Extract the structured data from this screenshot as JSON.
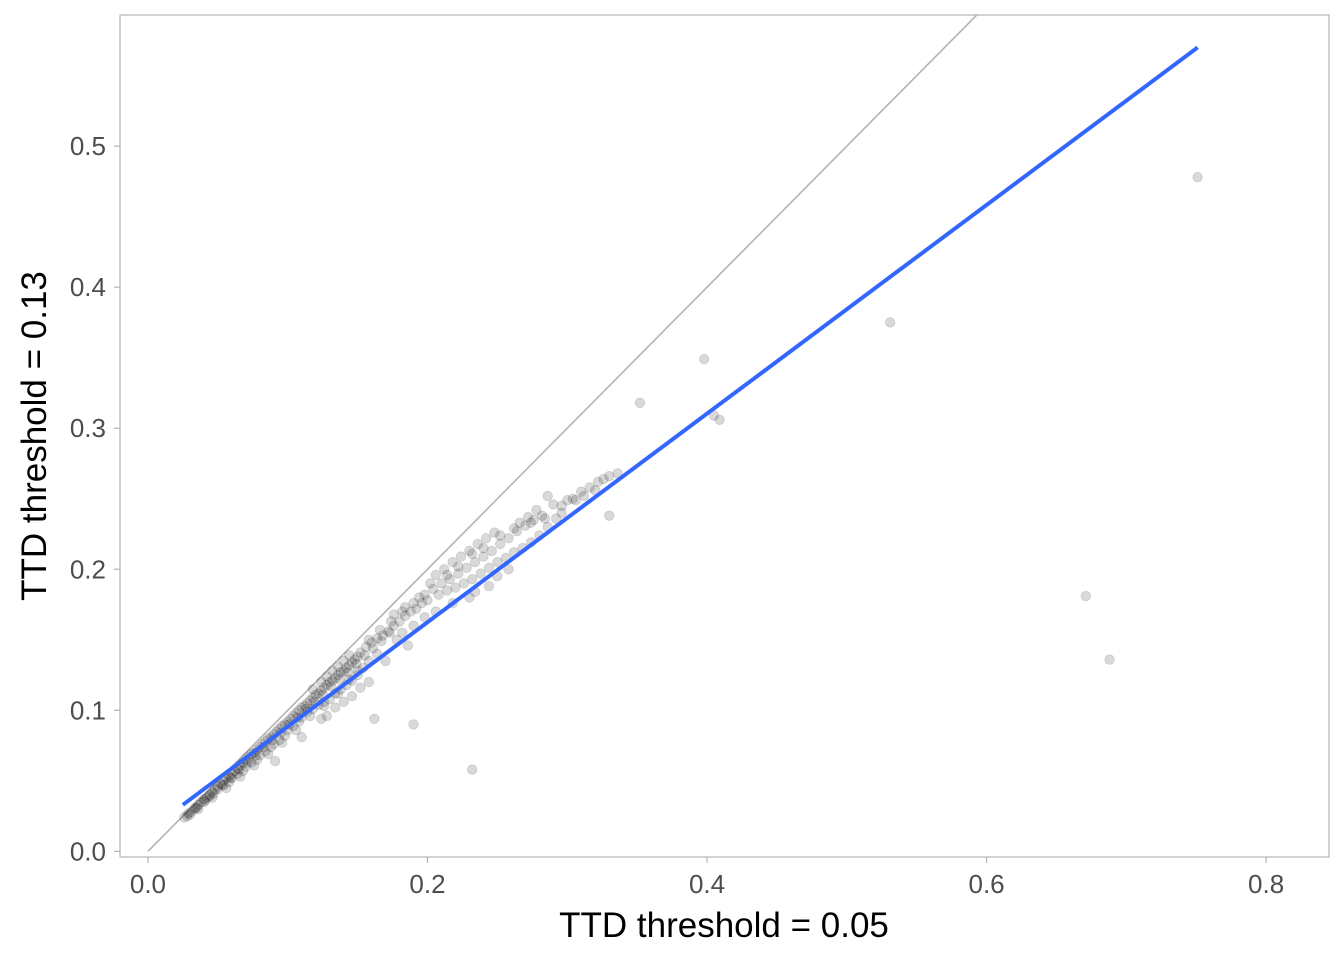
{
  "chart_data": {
    "type": "scatter",
    "title": "",
    "xlabel": "TTD threshold = 0.05",
    "ylabel": "TTD threshold = 0.13",
    "xlim": [
      -0.02,
      0.845
    ],
    "ylim": [
      -0.004,
      0.593
    ],
    "xticks": [
      0.0,
      0.2,
      0.4,
      0.6,
      0.8
    ],
    "xtick_labels": [
      "0.0",
      "0.2",
      "0.4",
      "0.6",
      "0.8"
    ],
    "yticks": [
      0.0,
      0.1,
      0.2,
      0.3,
      0.4,
      0.5
    ],
    "ytick_labels": [
      "0.0",
      "0.1",
      "0.2",
      "0.3",
      "0.4",
      "0.5"
    ],
    "grid": false,
    "legend": "none",
    "identity_line": {
      "slope": 1,
      "intercept": 0,
      "color": "#b3b3b3"
    },
    "fit_line": {
      "x": [
        0.025,
        0.751
      ],
      "y": [
        0.033,
        0.57
      ],
      "color": "#3366ff"
    },
    "point_color": "#000000",
    "point_opacity": 0.15,
    "points": [
      [
        0.026,
        0.024
      ],
      [
        0.028,
        0.025
      ],
      [
        0.029,
        0.027
      ],
      [
        0.031,
        0.028
      ],
      [
        0.033,
        0.03
      ],
      [
        0.034,
        0.031
      ],
      [
        0.036,
        0.033
      ],
      [
        0.038,
        0.035
      ],
      [
        0.04,
        0.037
      ],
      [
        0.042,
        0.038
      ],
      [
        0.044,
        0.04
      ],
      [
        0.046,
        0.042
      ],
      [
        0.048,
        0.044
      ],
      [
        0.05,
        0.046
      ],
      [
        0.052,
        0.048
      ],
      [
        0.054,
        0.05
      ],
      [
        0.056,
        0.052
      ],
      [
        0.058,
        0.053
      ],
      [
        0.06,
        0.055
      ],
      [
        0.062,
        0.057
      ],
      [
        0.064,
        0.059
      ],
      [
        0.066,
        0.061
      ],
      [
        0.068,
        0.063
      ],
      [
        0.07,
        0.065
      ],
      [
        0.072,
        0.067
      ],
      [
        0.074,
        0.069
      ],
      [
        0.076,
        0.07
      ],
      [
        0.078,
        0.072
      ],
      [
        0.08,
        0.074
      ],
      [
        0.082,
        0.076
      ],
      [
        0.084,
        0.078
      ],
      [
        0.086,
        0.08
      ],
      [
        0.088,
        0.081
      ],
      [
        0.09,
        0.083
      ],
      [
        0.092,
        0.085
      ],
      [
        0.094,
        0.087
      ],
      [
        0.096,
        0.089
      ],
      [
        0.098,
        0.09
      ],
      [
        0.1,
        0.092
      ],
      [
        0.102,
        0.094
      ],
      [
        0.104,
        0.096
      ],
      [
        0.106,
        0.098
      ],
      [
        0.108,
        0.1
      ],
      [
        0.11,
        0.102
      ],
      [
        0.112,
        0.103
      ],
      [
        0.114,
        0.105
      ],
      [
        0.116,
        0.107
      ],
      [
        0.118,
        0.109
      ],
      [
        0.12,
        0.111
      ],
      [
        0.122,
        0.112
      ],
      [
        0.124,
        0.114
      ],
      [
        0.126,
        0.116
      ],
      [
        0.128,
        0.118
      ],
      [
        0.13,
        0.12
      ],
      [
        0.132,
        0.121
      ],
      [
        0.134,
        0.123
      ],
      [
        0.136,
        0.125
      ],
      [
        0.138,
        0.127
      ],
      [
        0.14,
        0.128
      ],
      [
        0.142,
        0.13
      ],
      [
        0.144,
        0.132
      ],
      [
        0.146,
        0.134
      ],
      [
        0.148,
        0.136
      ],
      [
        0.15,
        0.138
      ],
      [
        0.035,
        0.031
      ],
      [
        0.041,
        0.036
      ],
      [
        0.047,
        0.041
      ],
      [
        0.053,
        0.047
      ],
      [
        0.059,
        0.052
      ],
      [
        0.065,
        0.058
      ],
      [
        0.071,
        0.063
      ],
      [
        0.077,
        0.068
      ],
      [
        0.083,
        0.074
      ],
      [
        0.089,
        0.079
      ],
      [
        0.095,
        0.084
      ],
      [
        0.101,
        0.09
      ],
      [
        0.107,
        0.095
      ],
      [
        0.113,
        0.101
      ],
      [
        0.119,
        0.106
      ],
      [
        0.125,
        0.111
      ],
      [
        0.131,
        0.117
      ],
      [
        0.137,
        0.122
      ],
      [
        0.143,
        0.127
      ],
      [
        0.149,
        0.133
      ],
      [
        0.155,
        0.139
      ],
      [
        0.161,
        0.144
      ],
      [
        0.167,
        0.149
      ],
      [
        0.173,
        0.155
      ],
      [
        0.152,
        0.141
      ],
      [
        0.156,
        0.145
      ],
      [
        0.16,
        0.148
      ],
      [
        0.164,
        0.151
      ],
      [
        0.168,
        0.153
      ],
      [
        0.172,
        0.156
      ],
      [
        0.176,
        0.16
      ],
      [
        0.18,
        0.163
      ],
      [
        0.184,
        0.167
      ],
      [
        0.188,
        0.17
      ],
      [
        0.192,
        0.172
      ],
      [
        0.196,
        0.176
      ],
      [
        0.158,
        0.15
      ],
      [
        0.166,
        0.157
      ],
      [
        0.174,
        0.163
      ],
      [
        0.182,
        0.17
      ],
      [
        0.19,
        0.176
      ],
      [
        0.198,
        0.182
      ],
      [
        0.204,
        0.186
      ],
      [
        0.21,
        0.19
      ],
      [
        0.216,
        0.193
      ],
      [
        0.222,
        0.197
      ],
      [
        0.228,
        0.201
      ],
      [
        0.234,
        0.205
      ],
      [
        0.24,
        0.209
      ],
      [
        0.246,
        0.213
      ],
      [
        0.252,
        0.218
      ],
      [
        0.258,
        0.222
      ],
      [
        0.264,
        0.227
      ],
      [
        0.27,
        0.231
      ],
      [
        0.276,
        0.235
      ],
      [
        0.282,
        0.238
      ],
      [
        0.206,
        0.196
      ],
      [
        0.212,
        0.2
      ],
      [
        0.218,
        0.205
      ],
      [
        0.224,
        0.209
      ],
      [
        0.23,
        0.213
      ],
      [
        0.236,
        0.218
      ],
      [
        0.242,
        0.222
      ],
      [
        0.248,
        0.226
      ],
      [
        0.2,
        0.178
      ],
      [
        0.208,
        0.182
      ],
      [
        0.214,
        0.185
      ],
      [
        0.22,
        0.187
      ],
      [
        0.226,
        0.19
      ],
      [
        0.232,
        0.193
      ],
      [
        0.238,
        0.197
      ],
      [
        0.244,
        0.201
      ],
      [
        0.25,
        0.205
      ],
      [
        0.256,
        0.208
      ],
      [
        0.262,
        0.212
      ],
      [
        0.268,
        0.215
      ],
      [
        0.274,
        0.219
      ],
      [
        0.28,
        0.224
      ],
      [
        0.286,
        0.23
      ],
      [
        0.292,
        0.236
      ],
      [
        0.296,
        0.245
      ],
      [
        0.3,
        0.249
      ],
      [
        0.304,
        0.25
      ],
      [
        0.31,
        0.255
      ],
      [
        0.316,
        0.258
      ],
      [
        0.322,
        0.262
      ],
      [
        0.326,
        0.264
      ],
      [
        0.33,
        0.266
      ],
      [
        0.336,
        0.268
      ],
      [
        0.32,
        0.256
      ],
      [
        0.312,
        0.252
      ],
      [
        0.286,
        0.252
      ],
      [
        0.29,
        0.246
      ],
      [
        0.278,
        0.242
      ],
      [
        0.272,
        0.237
      ],
      [
        0.266,
        0.233
      ],
      [
        0.13,
        0.108
      ],
      [
        0.134,
        0.112
      ],
      [
        0.138,
        0.115
      ],
      [
        0.142,
        0.118
      ],
      [
        0.146,
        0.121
      ],
      [
        0.15,
        0.125
      ],
      [
        0.154,
        0.13
      ],
      [
        0.158,
        0.135
      ],
      [
        0.11,
        0.095
      ],
      [
        0.114,
        0.099
      ],
      [
        0.118,
        0.101
      ],
      [
        0.122,
        0.104
      ],
      [
        0.126,
        0.106
      ],
      [
        0.1,
        0.086
      ],
      [
        0.104,
        0.089
      ],
      [
        0.108,
        0.092
      ],
      [
        0.09,
        0.076
      ],
      [
        0.094,
        0.079
      ],
      [
        0.098,
        0.082
      ],
      [
        0.08,
        0.068
      ],
      [
        0.084,
        0.071
      ],
      [
        0.088,
        0.074
      ],
      [
        0.07,
        0.06
      ],
      [
        0.074,
        0.063
      ],
      [
        0.078,
        0.065
      ],
      [
        0.06,
        0.052
      ],
      [
        0.064,
        0.055
      ],
      [
        0.068,
        0.057
      ],
      [
        0.05,
        0.044
      ],
      [
        0.054,
        0.047
      ],
      [
        0.058,
        0.049
      ],
      [
        0.044,
        0.039
      ],
      [
        0.04,
        0.035
      ],
      [
        0.118,
        0.115
      ],
      [
        0.124,
        0.12
      ],
      [
        0.128,
        0.124
      ],
      [
        0.132,
        0.128
      ],
      [
        0.136,
        0.131
      ],
      [
        0.14,
        0.135
      ],
      [
        0.144,
        0.139
      ],
      [
        0.178,
        0.15
      ],
      [
        0.186,
        0.146
      ],
      [
        0.176,
        0.168
      ],
      [
        0.184,
        0.173
      ],
      [
        0.194,
        0.18
      ],
      [
        0.202,
        0.19
      ],
      [
        0.214,
        0.196
      ],
      [
        0.222,
        0.202
      ],
      [
        0.232,
        0.211
      ],
      [
        0.24,
        0.215
      ],
      [
        0.252,
        0.224
      ],
      [
        0.262,
        0.229
      ],
      [
        0.274,
        0.233
      ],
      [
        0.284,
        0.236
      ],
      [
        0.296,
        0.24
      ],
      [
        0.306,
        0.249
      ],
      [
        0.17,
        0.135
      ],
      [
        0.164,
        0.14
      ],
      [
        0.15,
        0.128
      ],
      [
        0.144,
        0.122
      ],
      [
        0.136,
        0.112
      ],
      [
        0.126,
        0.103
      ],
      [
        0.116,
        0.096
      ],
      [
        0.106,
        0.086
      ],
      [
        0.096,
        0.077
      ],
      [
        0.086,
        0.069
      ],
      [
        0.076,
        0.061
      ],
      [
        0.066,
        0.053
      ],
      [
        0.056,
        0.045
      ],
      [
        0.046,
        0.038
      ],
      [
        0.036,
        0.03
      ],
      [
        0.03,
        0.026
      ],
      [
        0.128,
        0.096
      ],
      [
        0.134,
        0.102
      ],
      [
        0.14,
        0.106
      ],
      [
        0.146,
        0.11
      ],
      [
        0.152,
        0.116
      ],
      [
        0.158,
        0.12
      ],
      [
        0.25,
        0.195
      ],
      [
        0.258,
        0.2
      ],
      [
        0.234,
        0.184
      ],
      [
        0.244,
        0.188
      ],
      [
        0.23,
        0.18
      ],
      [
        0.218,
        0.176
      ],
      [
        0.206,
        0.17
      ],
      [
        0.198,
        0.166
      ],
      [
        0.19,
        0.16
      ],
      [
        0.182,
        0.155
      ],
      [
        0.091,
        0.064
      ],
      [
        0.11,
        0.081
      ],
      [
        0.124,
        0.094
      ],
      [
        0.162,
        0.094
      ],
      [
        0.19,
        0.09
      ],
      [
        0.232,
        0.058
      ],
      [
        0.33,
        0.238
      ],
      [
        0.352,
        0.318
      ],
      [
        0.398,
        0.349
      ],
      [
        0.405,
        0.309
      ],
      [
        0.409,
        0.306
      ],
      [
        0.531,
        0.375
      ],
      [
        0.671,
        0.181
      ],
      [
        0.688,
        0.136
      ],
      [
        0.751,
        0.478
      ]
    ]
  }
}
